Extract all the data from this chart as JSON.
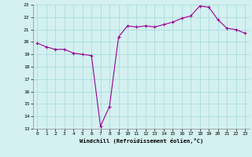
{
  "x": [
    0,
    1,
    2,
    3,
    4,
    5,
    6,
    7,
    8,
    9,
    10,
    11,
    12,
    13,
    14,
    15,
    16,
    17,
    18,
    19,
    20,
    21,
    22,
    23
  ],
  "y": [
    19.9,
    19.6,
    19.4,
    19.4,
    19.1,
    19.0,
    18.9,
    13.2,
    14.8,
    20.4,
    21.3,
    21.2,
    21.3,
    21.2,
    21.4,
    21.6,
    21.9,
    22.1,
    22.9,
    22.8,
    21.8,
    21.1,
    21.0,
    20.7
  ],
  "line_color": "#990099",
  "marker_color": "#990099",
  "bg_color": "#d4f0f0",
  "grid_color": "#aadddd",
  "xlabel": "Windchill (Refroidissement éolien,°C)",
  "ylim": [
    13,
    23
  ],
  "xlim": [
    -0.5,
    23.5
  ],
  "yticks": [
    13,
    14,
    15,
    16,
    17,
    18,
    19,
    20,
    21,
    22,
    23
  ],
  "xticks": [
    0,
    1,
    2,
    3,
    4,
    5,
    6,
    7,
    8,
    9,
    10,
    11,
    12,
    13,
    14,
    15,
    16,
    17,
    18,
    19,
    20,
    21,
    22,
    23
  ]
}
